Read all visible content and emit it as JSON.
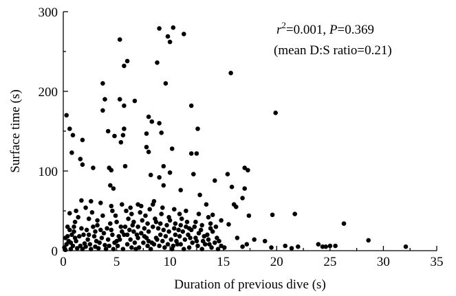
{
  "chart_data": {
    "type": "scatter",
    "xlabel": "Duration of previous dive (s)",
    "ylabel": "Surface time (s)",
    "xlim": [
      0,
      35
    ],
    "ylim": [
      0,
      300
    ],
    "xticks": [
      "0",
      "5",
      "10",
      "15",
      "20",
      "25",
      "30",
      "35"
    ],
    "yticks": [
      "0",
      "100",
      "200",
      "300"
    ],
    "annotation": {
      "r_symbol": "r",
      "r_sup": "2",
      "line1_rest": "=0.001, ",
      "p_symbol": "P",
      "p_rest": "=0.369",
      "line2": "(mean D:S ratio=0.21)"
    },
    "grid": false,
    "legend": "none",
    "point_color": "#000000",
    "points": [
      [
        9.0,
        279
      ],
      [
        10.3,
        280
      ],
      [
        9.8,
        269
      ],
      [
        11.3,
        272
      ],
      [
        5.3,
        265
      ],
      [
        10.0,
        262
      ],
      [
        6.0,
        238
      ],
      [
        5.7,
        232
      ],
      [
        8.8,
        236
      ],
      [
        15.7,
        223
      ],
      [
        3.7,
        210
      ],
      [
        9.6,
        210
      ],
      [
        3.9,
        190
      ],
      [
        5.3,
        190
      ],
      [
        6.7,
        188
      ],
      [
        5.7,
        182
      ],
      [
        3.7,
        176
      ],
      [
        12.0,
        182
      ],
      [
        19.9,
        173
      ],
      [
        8.0,
        168
      ],
      [
        8.3,
        162
      ],
      [
        9.0,
        160
      ],
      [
        5.7,
        153
      ],
      [
        4.2,
        150
      ],
      [
        4.8,
        144
      ],
      [
        5.6,
        145
      ],
      [
        5.4,
        136
      ],
      [
        7.8,
        147
      ],
      [
        9.2,
        148
      ],
      [
        12.6,
        153
      ],
      [
        0.3,
        170
      ],
      [
        0.6,
        153
      ],
      [
        0.9,
        145
      ],
      [
        1.8,
        139
      ],
      [
        7.8,
        130
      ],
      [
        8.0,
        124
      ],
      [
        10.2,
        128
      ],
      [
        12.0,
        122
      ],
      [
        12.5,
        122
      ],
      [
        2.8,
        104
      ],
      [
        4.3,
        104
      ],
      [
        4.5,
        101
      ],
      [
        0.8,
        123
      ],
      [
        1.6,
        115
      ],
      [
        1.8,
        108
      ],
      [
        5.8,
        106
      ],
      [
        9.4,
        106
      ],
      [
        10.0,
        98
      ],
      [
        12.2,
        96
      ],
      [
        15.4,
        96
      ],
      [
        17.0,
        104
      ],
      [
        17.3,
        101
      ],
      [
        8.2,
        95
      ],
      [
        9.0,
        92
      ],
      [
        4.4,
        82
      ],
      [
        4.7,
        78
      ],
      [
        9.4,
        82
      ],
      [
        11.0,
        76
      ],
      [
        12.8,
        70
      ],
      [
        14.2,
        88
      ],
      [
        15.8,
        80
      ],
      [
        17.0,
        78
      ],
      [
        16.8,
        66
      ],
      [
        16.0,
        58
      ],
      [
        1.7,
        63
      ],
      [
        2.6,
        62
      ],
      [
        3.5,
        60
      ],
      [
        2.1,
        54
      ],
      [
        4.5,
        56
      ],
      [
        7.0,
        58
      ],
      [
        8.5,
        62
      ],
      [
        13.4,
        58
      ],
      [
        16.2,
        55
      ],
      [
        1.2,
        50
      ],
      [
        0.6,
        47
      ],
      [
        6.4,
        46
      ],
      [
        10.9,
        46
      ],
      [
        14.0,
        45
      ],
      [
        19.6,
        45
      ],
      [
        21.7,
        46
      ],
      [
        17.4,
        44
      ],
      [
        14.8,
        38
      ],
      [
        15.5,
        33
      ],
      [
        13.8,
        28
      ],
      [
        16.3,
        16
      ],
      [
        17.2,
        8
      ],
      [
        17.9,
        14
      ],
      [
        18.9,
        12
      ],
      [
        16.8,
        5
      ],
      [
        19.5,
        4
      ],
      [
        20.8,
        6
      ],
      [
        21.4,
        3
      ],
      [
        22.0,
        5
      ],
      [
        23.9,
        8
      ],
      [
        24.3,
        5
      ],
      [
        24.6,
        5
      ],
      [
        25.0,
        6
      ],
      [
        25.5,
        6
      ],
      [
        26.3,
        34
      ],
      [
        28.6,
        13
      ],
      [
        32.1,
        5
      ],
      [
        2.4,
        40
      ],
      [
        3.2,
        38
      ],
      [
        1.1,
        36
      ],
      [
        0.4,
        30
      ],
      [
        0.6,
        26
      ],
      [
        1.0,
        24
      ],
      [
        0.8,
        20
      ],
      [
        0.2,
        16
      ],
      [
        0.5,
        12
      ],
      [
        0.3,
        8
      ],
      [
        0.1,
        4
      ],
      [
        0.2,
        1
      ],
      [
        0.7,
        2
      ],
      [
        1.3,
        3
      ],
      [
        1.6,
        6
      ],
      [
        2.0,
        9
      ],
      [
        2.3,
        14
      ],
      [
        2.6,
        2
      ],
      [
        3.0,
        5
      ],
      [
        3.4,
        10
      ],
      [
        3.8,
        22
      ],
      [
        4.1,
        28
      ],
      [
        4.4,
        34
      ],
      [
        4.7,
        2
      ],
      [
        5.0,
        12
      ],
      [
        5.2,
        18
      ],
      [
        5.5,
        24
      ],
      [
        5.8,
        30
      ],
      [
        6.1,
        40
      ],
      [
        6.4,
        4
      ],
      [
        6.7,
        10
      ],
      [
        7.0,
        16
      ],
      [
        7.3,
        22
      ],
      [
        7.6,
        28
      ],
      [
        7.9,
        34
      ],
      [
        8.2,
        2
      ],
      [
        8.5,
        8
      ],
      [
        8.8,
        14
      ],
      [
        9.1,
        20
      ],
      [
        9.4,
        26
      ],
      [
        9.7,
        32
      ],
      [
        10.0,
        38
      ],
      [
        10.3,
        6
      ],
      [
        10.6,
        12
      ],
      [
        10.9,
        18
      ],
      [
        11.2,
        24
      ],
      [
        11.5,
        30
      ],
      [
        11.8,
        4
      ],
      [
        12.1,
        10
      ],
      [
        12.4,
        16
      ],
      [
        12.7,
        22
      ],
      [
        13.0,
        2
      ],
      [
        13.3,
        8
      ],
      [
        13.6,
        14
      ],
      [
        13.9,
        4
      ],
      [
        14.2,
        10
      ],
      [
        14.5,
        2
      ],
      [
        14.8,
        6
      ],
      [
        1.4,
        42
      ],
      [
        2.8,
        30
      ],
      [
        3.6,
        16
      ],
      [
        4.9,
        44
      ],
      [
        5.9,
        50
      ],
      [
        6.6,
        36
      ],
      [
        7.2,
        48
      ],
      [
        7.7,
        44
      ],
      [
        8.1,
        52
      ],
      [
        8.6,
        40
      ],
      [
        9.2,
        46
      ],
      [
        9.9,
        42
      ],
      [
        10.5,
        34
      ],
      [
        11.1,
        40
      ],
      [
        11.6,
        36
      ],
      [
        12.3,
        30
      ],
      [
        12.9,
        26
      ],
      [
        13.5,
        20
      ],
      [
        1.9,
        20
      ],
      [
        2.2,
        26
      ],
      [
        2.9,
        18
      ],
      [
        3.3,
        3
      ],
      [
        3.9,
        7
      ],
      [
        4.2,
        14
      ],
      [
        4.6,
        20
      ],
      [
        5.1,
        6
      ],
      [
        5.4,
        30
      ],
      [
        5.6,
        2
      ],
      [
        6.0,
        8
      ],
      [
        6.3,
        14
      ],
      [
        6.9,
        20
      ],
      [
        7.1,
        4
      ],
      [
        7.5,
        10
      ],
      [
        7.8,
        16
      ],
      [
        8.0,
        24
      ],
      [
        8.4,
        30
      ],
      [
        8.7,
        36
      ],
      [
        9.0,
        6
      ],
      [
        9.3,
        12
      ],
      [
        9.6,
        18
      ],
      [
        9.9,
        24
      ],
      [
        10.2,
        2
      ],
      [
        10.5,
        20
      ],
      [
        10.8,
        26
      ],
      [
        11.0,
        8
      ],
      [
        11.4,
        14
      ],
      [
        11.7,
        20
      ],
      [
        12.0,
        26
      ],
      [
        12.6,
        6
      ],
      [
        13.1,
        12
      ],
      [
        13.7,
        8
      ],
      [
        14.4,
        16
      ],
      [
        15.1,
        4
      ],
      [
        0.9,
        6
      ],
      [
        1.2,
        12
      ],
      [
        1.5,
        18
      ],
      [
        1.8,
        2
      ],
      [
        2.1,
        5
      ],
      [
        2.5,
        8
      ],
      [
        3.1,
        12
      ],
      [
        3.5,
        26
      ],
      [
        4.0,
        2
      ],
      [
        4.3,
        6
      ],
      [
        4.8,
        10
      ],
      [
        5.3,
        14
      ],
      [
        5.7,
        20
      ],
      [
        6.2,
        26
      ],
      [
        6.5,
        32
      ],
      [
        6.8,
        2
      ],
      [
        7.4,
        38
      ],
      [
        7.9,
        6
      ],
      [
        8.3,
        10
      ],
      [
        8.9,
        28
      ],
      [
        9.5,
        4
      ],
      [
        10.1,
        14
      ],
      [
        10.7,
        8
      ],
      [
        11.3,
        2
      ],
      [
        11.9,
        16
      ],
      [
        12.5,
        12
      ],
      [
        13.2,
        18
      ],
      [
        14.0,
        24
      ],
      [
        14.6,
        12
      ],
      [
        1.0,
        30
      ],
      [
        1.7,
        28
      ],
      [
        2.7,
        48
      ],
      [
        3.7,
        44
      ],
      [
        4.6,
        50
      ],
      [
        5.5,
        58
      ],
      [
        6.3,
        54
      ],
      [
        7.3,
        56
      ],
      [
        8.4,
        58
      ],
      [
        9.3,
        54
      ],
      [
        10.4,
        52
      ],
      [
        11.5,
        50
      ],
      [
        12.7,
        46
      ],
      [
        13.6,
        42
      ],
      [
        0.4,
        18
      ],
      [
        0.7,
        10
      ],
      [
        1.1,
        16
      ],
      [
        2.4,
        20
      ],
      [
        3.0,
        24
      ],
      [
        3.2,
        32
      ],
      [
        4.5,
        26
      ],
      [
        5.0,
        36
      ],
      [
        6.0,
        20
      ],
      [
        6.6,
        24
      ],
      [
        7.0,
        30
      ],
      [
        7.6,
        18
      ],
      [
        8.0,
        12
      ],
      [
        8.7,
        16
      ],
      [
        9.1,
        34
      ],
      [
        9.8,
        8
      ],
      [
        10.4,
        28
      ],
      [
        11.0,
        32
      ],
      [
        11.8,
        28
      ],
      [
        12.4,
        36
      ],
      [
        13.0,
        32
      ],
      [
        13.8,
        34
      ],
      [
        14.3,
        30
      ]
    ]
  }
}
